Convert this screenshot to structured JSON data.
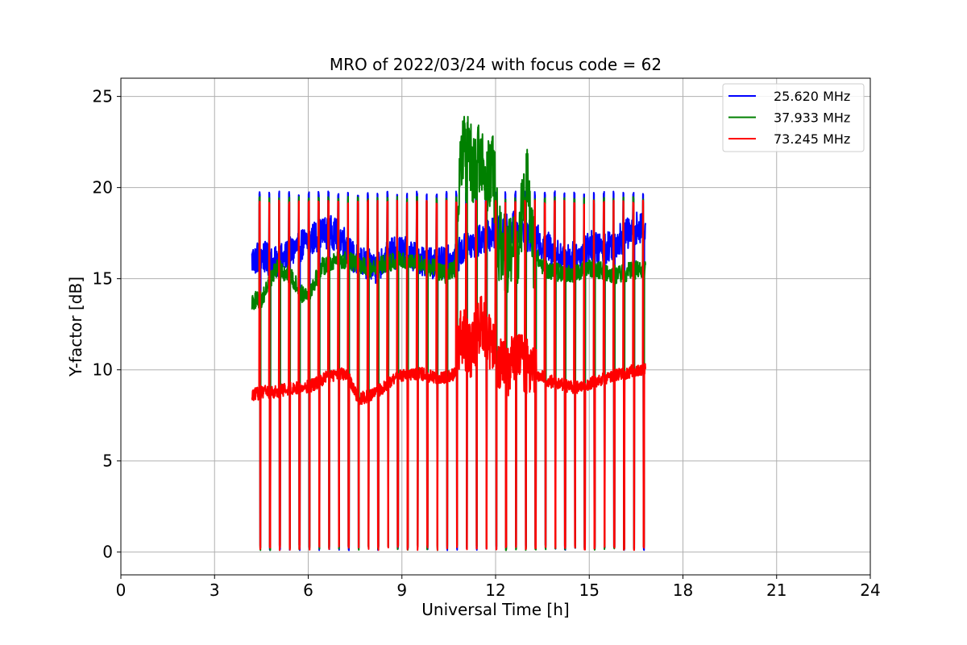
{
  "chart_data": {
    "type": "line",
    "title": "MRO of 2022/03/24 with focus code = 62",
    "xlabel": "Universal Time [h]",
    "ylabel": "Y-factor [dB]",
    "xlim": [
      0,
      24
    ],
    "ylim": [
      -1.25,
      26
    ],
    "xticks": [
      0,
      3,
      6,
      9,
      12,
      15,
      18,
      21,
      24
    ],
    "xtick_labels": [
      "0",
      "3",
      "6",
      "9",
      "12",
      "15",
      "18",
      "21",
      "24"
    ],
    "yticks": [
      0,
      5,
      10,
      15,
      20,
      25
    ],
    "ytick_labels": [
      "0",
      "5",
      "10",
      "15",
      "20",
      "25"
    ],
    "grid": true,
    "legend_position": "top-right",
    "data_range_hours": [
      4.2,
      16.8
    ],
    "calibration_pulse_count": 40,
    "series": [
      {
        "name": "25.620 MHz",
        "color": "#0000ff",
        "pulse_top": 19.8,
        "pulse_bottom": 0.1,
        "baseline": [
          [
            4.2,
            16.0
          ],
          [
            4.5,
            16.3
          ],
          [
            4.9,
            15.8
          ],
          [
            5.3,
            16.2
          ],
          [
            5.7,
            16.8
          ],
          [
            6.0,
            17.0
          ],
          [
            6.3,
            17.4
          ],
          [
            6.7,
            17.6
          ],
          [
            7.1,
            17.2
          ],
          [
            7.4,
            16.2
          ],
          [
            7.8,
            15.8
          ],
          [
            8.2,
            15.6
          ],
          [
            8.6,
            16.3
          ],
          [
            9.0,
            16.5
          ],
          [
            9.4,
            16.2
          ],
          [
            9.8,
            16.0
          ],
          [
            10.2,
            15.8
          ],
          [
            10.6,
            16.0
          ],
          [
            11.0,
            16.6
          ],
          [
            11.4,
            17.0
          ],
          [
            11.8,
            17.4
          ],
          [
            12.2,
            17.6
          ],
          [
            12.6,
            17.8
          ],
          [
            13.0,
            17.4
          ],
          [
            13.4,
            17.0
          ],
          [
            13.8,
            16.6
          ],
          [
            14.2,
            16.0
          ],
          [
            14.6,
            16.2
          ],
          [
            15.0,
            16.8
          ],
          [
            15.4,
            16.6
          ],
          [
            15.8,
            17.0
          ],
          [
            16.2,
            17.4
          ],
          [
            16.5,
            17.8
          ],
          [
            16.8,
            17.6
          ]
        ]
      },
      {
        "name": "37.933 MHz",
        "color": "#008000",
        "pulse_top": 19.5,
        "pulse_bottom": 0.1,
        "baseline": [
          [
            4.2,
            13.8
          ],
          [
            4.5,
            13.8
          ],
          [
            4.7,
            14.6
          ],
          [
            5.0,
            15.6
          ],
          [
            5.4,
            15.2
          ],
          [
            5.8,
            14.2
          ],
          [
            6.1,
            14.4
          ],
          [
            6.4,
            15.6
          ],
          [
            6.8,
            16.0
          ],
          [
            7.2,
            16.0
          ],
          [
            7.6,
            15.8
          ],
          [
            8.0,
            15.6
          ],
          [
            8.4,
            15.8
          ],
          [
            8.8,
            16.0
          ],
          [
            9.2,
            16.0
          ],
          [
            9.6,
            15.8
          ],
          [
            10.0,
            15.6
          ],
          [
            10.4,
            15.2
          ],
          [
            10.7,
            15.6
          ],
          [
            10.9,
            21.5
          ],
          [
            11.1,
            22.5
          ],
          [
            11.3,
            20.5
          ],
          [
            11.5,
            21.8
          ],
          [
            11.7,
            20.5
          ],
          [
            11.9,
            21.5
          ],
          [
            12.1,
            17.0
          ],
          [
            12.4,
            16.2
          ],
          [
            12.7,
            16.6
          ],
          [
            13.0,
            20.5
          ],
          [
            13.2,
            16.6
          ],
          [
            13.5,
            15.6
          ],
          [
            13.9,
            15.4
          ],
          [
            14.3,
            15.2
          ],
          [
            14.7,
            15.4
          ],
          [
            15.1,
            15.6
          ],
          [
            15.5,
            15.4
          ],
          [
            15.9,
            15.2
          ],
          [
            16.3,
            15.4
          ],
          [
            16.8,
            15.6
          ]
        ]
      },
      {
        "name": "73.245 MHz",
        "color": "#ff0000",
        "pulse_top": 19.3,
        "pulse_bottom": 0.1,
        "baseline": [
          [
            4.2,
            8.6
          ],
          [
            4.6,
            8.8
          ],
          [
            5.0,
            8.8
          ],
          [
            5.4,
            9.0
          ],
          [
            5.8,
            9.0
          ],
          [
            6.2,
            9.2
          ],
          [
            6.6,
            9.6
          ],
          [
            7.0,
            9.8
          ],
          [
            7.3,
            9.6
          ],
          [
            7.6,
            8.4
          ],
          [
            8.0,
            8.6
          ],
          [
            8.4,
            9.0
          ],
          [
            8.8,
            9.6
          ],
          [
            9.2,
            9.8
          ],
          [
            9.6,
            9.8
          ],
          [
            10.0,
            9.6
          ],
          [
            10.4,
            9.6
          ],
          [
            10.7,
            9.8
          ],
          [
            10.9,
            12.0
          ],
          [
            11.2,
            11.0
          ],
          [
            11.5,
            12.6
          ],
          [
            11.8,
            11.6
          ],
          [
            12.1,
            10.4
          ],
          [
            12.4,
            10.0
          ],
          [
            12.7,
            10.6
          ],
          [
            13.0,
            10.2
          ],
          [
            13.3,
            9.8
          ],
          [
            13.7,
            9.4
          ],
          [
            14.1,
            9.2
          ],
          [
            14.5,
            9.0
          ],
          [
            14.9,
            9.2
          ],
          [
            15.3,
            9.4
          ],
          [
            15.7,
            9.6
          ],
          [
            16.1,
            9.8
          ],
          [
            16.5,
            10.0
          ],
          [
            16.8,
            10.0
          ]
        ]
      }
    ]
  }
}
